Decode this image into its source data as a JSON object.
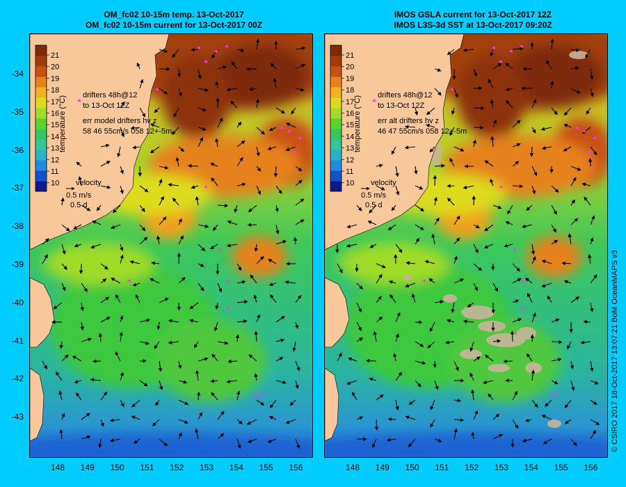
{
  "panels": [
    {
      "title_line1": "OM_fc02 10-15m temp. 13-Oct-2017",
      "title_line2": "OM_fc02 10-15m current for 13-Oct-2017 00Z",
      "drifters_line1": "drifters 48h@12",
      "drifters_line2": "to 13-Oct 12Z",
      "err_line1": "err model drifters hv z",
      "err_line2": "58 46 55cm/s 058 12+-5m",
      "velocity_label": "velocity",
      "velocity_speed": "0.5 m/s",
      "velocity_duration": "0.5 d",
      "colorbar_label": "temperature (°C)",
      "has_gaps": false
    },
    {
      "title_line1": "IMOS GSLA current for 13-Oct-2017 12Z",
      "title_line2": "IMOS L3S-3d SST at 13-Oct-2017 09:20Z",
      "drifters_line1": "drifters 48h@12",
      "drifters_line2": "to 13-Oct 12Z",
      "err_line1": "err alt drifters hv z",
      "err_line2": "46 47 55cm/s 058 12+-5m",
      "velocity_label": "velocity",
      "velocity_speed": "0.5 m/s",
      "velocity_duration": "0.5 d",
      "colorbar_label": "temperature (°C)",
      "has_gaps": true
    }
  ],
  "lat_ticks": [
    "-34",
    "-35",
    "-36",
    "-37",
    "-38",
    "-39",
    "-40",
    "-41",
    "-42",
    "-43"
  ],
  "lon_ticks": [
    "148",
    "149",
    "150",
    "151",
    "152",
    "153",
    "154",
    "155",
    "156"
  ],
  "colorbar_ticks": [
    "21",
    "20",
    "19",
    "18",
    "17",
    "16",
    "15",
    "14",
    "13",
    "12",
    "11",
    "10"
  ],
  "colors": {
    "background": "#00ccff",
    "land": "#f9c89a",
    "drifter": "#ff33ff",
    "cloud_gap": "#c8b49a"
  },
  "copyright": "© CSIRO 2017   18-Oct-2017 13:07:21 BoM OceanMAPS v3"
}
